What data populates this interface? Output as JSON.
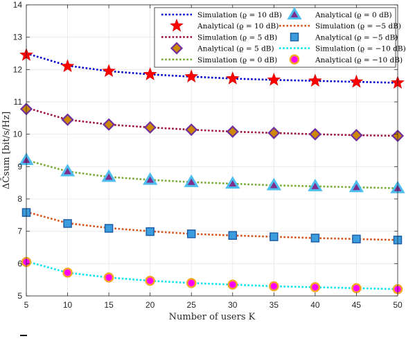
{
  "chart_data": {
    "type": "line",
    "xlabel": "Number of users K",
    "ylabel": "ΔC̄sum [bit/s/Hz]",
    "xlim": [
      5,
      50
    ],
    "ylim": [
      5,
      14
    ],
    "x_ticks": [
      "5",
      "10",
      "15",
      "20",
      "25",
      "30",
      "35",
      "40",
      "45",
      "50"
    ],
    "y_ticks": [
      "5",
      "6",
      "7",
      "8",
      "9",
      "10",
      "11",
      "12",
      "13",
      "14"
    ],
    "grid": true,
    "legend_position": "top-right",
    "x": [
      5,
      10,
      15,
      20,
      25,
      30,
      35,
      40,
      45,
      50
    ],
    "series": [
      {
        "name": "Simulation (ϱ = 10 dB)",
        "kind": "line",
        "style": "dotted",
        "color": "#0000cc",
        "values": [
          12.5,
          12.12,
          11.95,
          11.85,
          11.78,
          11.72,
          11.68,
          11.65,
          11.62,
          11.59
        ]
      },
      {
        "name": "Analytical (ϱ = 10 dB)",
        "kind": "marker",
        "marker": "star",
        "color": "#ff0000",
        "values": [
          12.45,
          12.1,
          11.95,
          11.85,
          11.78,
          11.72,
          11.68,
          11.65,
          11.62,
          11.59
        ]
      },
      {
        "name": "Simulation (ϱ = 5 dB)",
        "kind": "line",
        "style": "dotted",
        "color": "#a0123a",
        "values": [
          10.82,
          10.45,
          10.3,
          10.21,
          10.14,
          10.08,
          10.04,
          10.0,
          9.97,
          9.95
        ]
      },
      {
        "name": "Analytical (ϱ = 5 dB)",
        "kind": "marker",
        "marker": "diamond",
        "color": "#7030a0",
        "fill": "#cc8800",
        "values": [
          10.78,
          10.45,
          10.3,
          10.21,
          10.14,
          10.08,
          10.04,
          10.0,
          9.97,
          9.95
        ]
      },
      {
        "name": "Simulation (ϱ = 0 dB)",
        "kind": "line",
        "style": "dotted",
        "color": "#77ac30",
        "values": [
          9.2,
          8.85,
          8.68,
          8.59,
          8.52,
          8.47,
          8.42,
          8.39,
          8.36,
          8.33
        ]
      },
      {
        "name": "Analytical (ϱ = 0 dB)",
        "kind": "marker",
        "marker": "triangle",
        "color": "#4dbeee",
        "fill": "#7e2f8e",
        "values": [
          9.2,
          8.85,
          8.68,
          8.59,
          8.52,
          8.47,
          8.42,
          8.39,
          8.36,
          8.33
        ]
      },
      {
        "name": "Simulation (ϱ = −5 dB)",
        "kind": "line",
        "style": "dotted",
        "color": "#d95319",
        "values": [
          7.6,
          7.25,
          7.1,
          7.0,
          6.92,
          6.87,
          6.83,
          6.79,
          6.76,
          6.73
        ]
      },
      {
        "name": "Analytical (ϱ = −5 dB)",
        "kind": "marker",
        "marker": "square",
        "color": "#1f5fa8",
        "fill": "#3b9ddd",
        "values": [
          7.58,
          7.24,
          7.09,
          6.99,
          6.92,
          6.87,
          6.83,
          6.79,
          6.76,
          6.73
        ]
      },
      {
        "name": "Simulation (ϱ = −10 dB)",
        "kind": "line",
        "style": "dotted",
        "color": "#00e5ee",
        "values": [
          6.07,
          5.72,
          5.57,
          5.47,
          5.4,
          5.35,
          5.3,
          5.27,
          5.24,
          5.21
        ]
      },
      {
        "name": "Analytical (ϱ = −10 dB)",
        "kind": "marker",
        "marker": "circle",
        "color": "#f5a623",
        "fill": "#ff00ff",
        "values": [
          6.05,
          5.72,
          5.57,
          5.47,
          5.4,
          5.35,
          5.3,
          5.27,
          5.24,
          5.21
        ]
      }
    ]
  }
}
